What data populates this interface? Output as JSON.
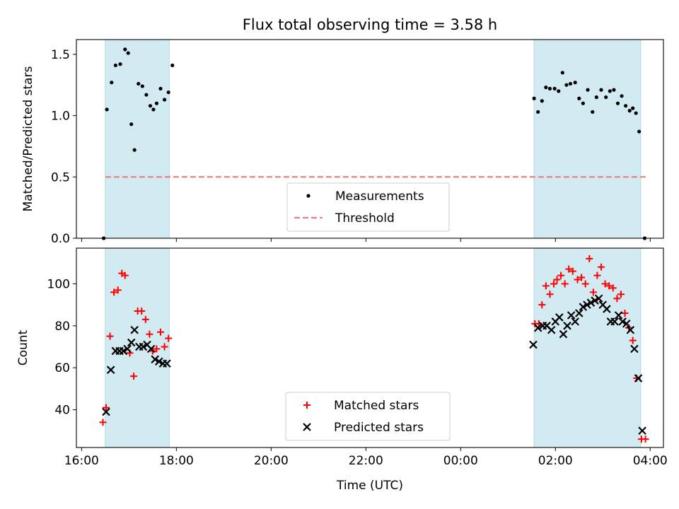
{
  "chart_data": [
    {
      "type": "scatter",
      "title": "Flux total observing time = 3.58 h",
      "xlabel": "",
      "ylabel": "Matched/Predicted stars",
      "xlim": [
        "16:00",
        "04:00"
      ],
      "ylim": [
        0,
        1.62
      ],
      "xticks": [
        "16:00",
        "18:00",
        "20:00",
        "22:00",
        "00:00",
        "02:00",
        "04:00"
      ],
      "yticks": [
        "0.0",
        "0.5",
        "1.0",
        "1.5"
      ],
      "grid": false,
      "legend_position": "bottom-center",
      "shaded_intervals": [
        [
          "16:30",
          "17:51"
        ],
        [
          "01:33",
          "03:48"
        ]
      ],
      "series": [
        {
          "name": "Measurements",
          "marker": "dot",
          "color": "#000000",
          "x": [
            "16:28",
            "16:32",
            "16:38",
            "16:43",
            "16:49",
            "16:55",
            "16:59",
            "17:03",
            "17:07",
            "17:12",
            "17:17",
            "17:22",
            "17:27",
            "17:31",
            "17:35",
            "17:40",
            "17:45",
            "17:50",
            "17:55",
            "01:33",
            "01:38",
            "01:43",
            "01:48",
            "01:53",
            "01:59",
            "02:04",
            "02:09",
            "02:14",
            "02:19",
            "02:25",
            "02:30",
            "02:35",
            "02:41",
            "02:47",
            "02:52",
            "02:58",
            "03:04",
            "03:09",
            "03:14",
            "03:19",
            "03:24",
            "03:29",
            "03:34",
            "03:38",
            "03:42",
            "03:46",
            "03:53"
          ],
          "y": [
            0.0,
            1.05,
            1.27,
            1.41,
            1.42,
            1.54,
            1.51,
            0.93,
            0.72,
            1.26,
            1.24,
            1.17,
            1.08,
            1.05,
            1.1,
            1.22,
            1.13,
            1.19,
            1.41,
            1.14,
            1.03,
            1.12,
            1.23,
            1.22,
            1.22,
            1.2,
            1.35,
            1.25,
            1.26,
            1.27,
            1.14,
            1.1,
            1.21,
            1.03,
            1.15,
            1.21,
            1.15,
            1.2,
            1.21,
            1.1,
            1.16,
            1.08,
            1.04,
            1.06,
            1.02,
            0.87,
            0.0
          ]
        },
        {
          "name": "Threshold",
          "marker": "dashed-line",
          "color": "#f08080",
          "x": [
            "16:30",
            "03:55"
          ],
          "y": [
            0.5,
            0.5
          ]
        }
      ]
    },
    {
      "type": "scatter",
      "title": "",
      "xlabel": "Time (UTC)",
      "ylabel": "Count",
      "xlim": [
        "16:00",
        "04:00"
      ],
      "ylim": [
        22,
        117
      ],
      "xticks": [
        "16:00",
        "18:00",
        "20:00",
        "22:00",
        "00:00",
        "02:00",
        "04:00"
      ],
      "yticks": [
        "40",
        "60",
        "80",
        "100"
      ],
      "grid": false,
      "legend_position": "bottom-center",
      "shaded_intervals": [
        [
          "16:30",
          "17:51"
        ],
        [
          "01:33",
          "03:48"
        ]
      ],
      "series": [
        {
          "name": "Matched stars",
          "marker": "plus",
          "color": "#ff0000",
          "x": [
            "16:27",
            "16:31",
            "16:36",
            "16:41",
            "16:46",
            "16:51",
            "16:55",
            "17:01",
            "17:06",
            "17:11",
            "17:16",
            "17:21",
            "17:26",
            "17:30",
            "17:35",
            "17:40",
            "17:45",
            "17:50",
            "01:34",
            "01:39",
            "01:43",
            "01:48",
            "01:53",
            "01:58",
            "02:02",
            "02:07",
            "02:12",
            "02:17",
            "02:22",
            "02:28",
            "02:33",
            "02:38",
            "02:43",
            "02:48",
            "02:53",
            "02:58",
            "03:03",
            "03:08",
            "03:13",
            "03:18",
            "03:23",
            "03:28",
            "03:33",
            "03:38",
            "03:43",
            "03:49",
            "03:54"
          ],
          "y": [
            34,
            41,
            75,
            96,
            97,
            105,
            104,
            67,
            56,
            87,
            87,
            83,
            76,
            68,
            69,
            77,
            70,
            74,
            81,
            81,
            90,
            99,
            95,
            100,
            102,
            104,
            100,
            107,
            106,
            102,
            103,
            100,
            112,
            96,
            104,
            108,
            100,
            99,
            98,
            93,
            95,
            86,
            79,
            73,
            55,
            26,
            26
          ]
        },
        {
          "name": "Predicted stars",
          "marker": "x",
          "color": "#000000",
          "x": [
            "16:31",
            "16:37",
            "16:43",
            "16:48",
            "16:53",
            "16:58",
            "17:03",
            "17:07",
            "17:13",
            "17:18",
            "17:23",
            "17:28",
            "17:33",
            "17:38",
            "17:43",
            "17:48",
            "01:32",
            "01:38",
            "01:44",
            "01:49",
            "01:55",
            "02:00",
            "02:05",
            "02:10",
            "02:15",
            "02:20",
            "02:25",
            "02:30",
            "02:35",
            "02:40",
            "02:45",
            "02:50",
            "02:55",
            "03:00",
            "03:05",
            "03:10",
            "03:15",
            "03:20",
            "03:25",
            "03:30",
            "03:35",
            "03:40",
            "03:45",
            "03:50"
          ],
          "y": [
            39,
            59,
            68,
            68,
            68,
            69,
            72,
            78,
            70,
            70,
            71,
            69,
            64,
            63,
            62,
            62,
            71,
            79,
            80,
            80,
            78,
            82,
            84,
            76,
            80,
            85,
            82,
            86,
            89,
            90,
            91,
            92,
            93,
            90,
            88,
            82,
            82,
            85,
            82,
            81,
            78,
            69,
            55,
            30
          ]
        }
      ]
    }
  ]
}
